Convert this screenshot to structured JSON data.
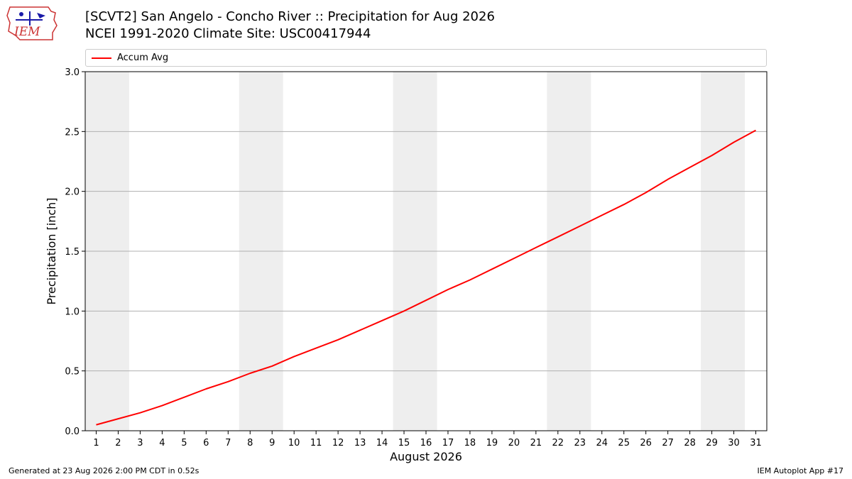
{
  "header": {
    "title_line1": "[SCVT2] San Angelo - Concho River :: Precipitation for Aug 2026",
    "title_line2": "NCEI 1991-2020 Climate Site: USC00417944"
  },
  "logo": {
    "text": "IEM"
  },
  "footer": {
    "generated": "Generated at 23 Aug 2026 2:00 PM CDT in 0.52s",
    "app": "IEM Autoplot App #17"
  },
  "colors": {
    "line": "#ff0000",
    "weekend_band": "#eeeeee",
    "grid": "#b0b0b0"
  },
  "chart_data": {
    "type": "line",
    "xlabel": "August 2026",
    "ylabel": "Precipitation [inch]",
    "xlim": [
      0.5,
      31.5
    ],
    "ylim": [
      0,
      3.0
    ],
    "yticks": [
      0.0,
      0.5,
      1.0,
      1.5,
      2.0,
      2.5,
      3.0
    ],
    "ytick_labels": [
      "0.0",
      "0.5",
      "1.0",
      "1.5",
      "2.0",
      "2.5",
      "3.0"
    ],
    "xticks": [
      1,
      2,
      3,
      4,
      5,
      6,
      7,
      8,
      9,
      10,
      11,
      12,
      13,
      14,
      15,
      16,
      17,
      18,
      19,
      20,
      21,
      22,
      23,
      24,
      25,
      26,
      27,
      28,
      29,
      30,
      31
    ],
    "grid": "horizontal",
    "legend_position": "top",
    "weekend_bands": [
      [
        0.5,
        2.5
      ],
      [
        7.5,
        9.5
      ],
      [
        14.5,
        16.5
      ],
      [
        21.5,
        23.5
      ],
      [
        28.5,
        30.5
      ]
    ],
    "series": [
      {
        "name": "Accum Avg",
        "color": "#ff0000",
        "x": [
          1,
          2,
          3,
          4,
          5,
          6,
          7,
          8,
          9,
          10,
          11,
          12,
          13,
          14,
          15,
          16,
          17,
          18,
          19,
          20,
          21,
          22,
          23,
          24,
          25,
          26,
          27,
          28,
          29,
          30,
          31
        ],
        "values": [
          0.05,
          0.1,
          0.15,
          0.21,
          0.28,
          0.35,
          0.41,
          0.48,
          0.54,
          0.62,
          0.69,
          0.76,
          0.84,
          0.92,
          1.0,
          1.09,
          1.18,
          1.26,
          1.35,
          1.44,
          1.53,
          1.62,
          1.71,
          1.8,
          1.89,
          1.99,
          2.1,
          2.2,
          2.3,
          2.41,
          2.51
        ]
      }
    ]
  }
}
